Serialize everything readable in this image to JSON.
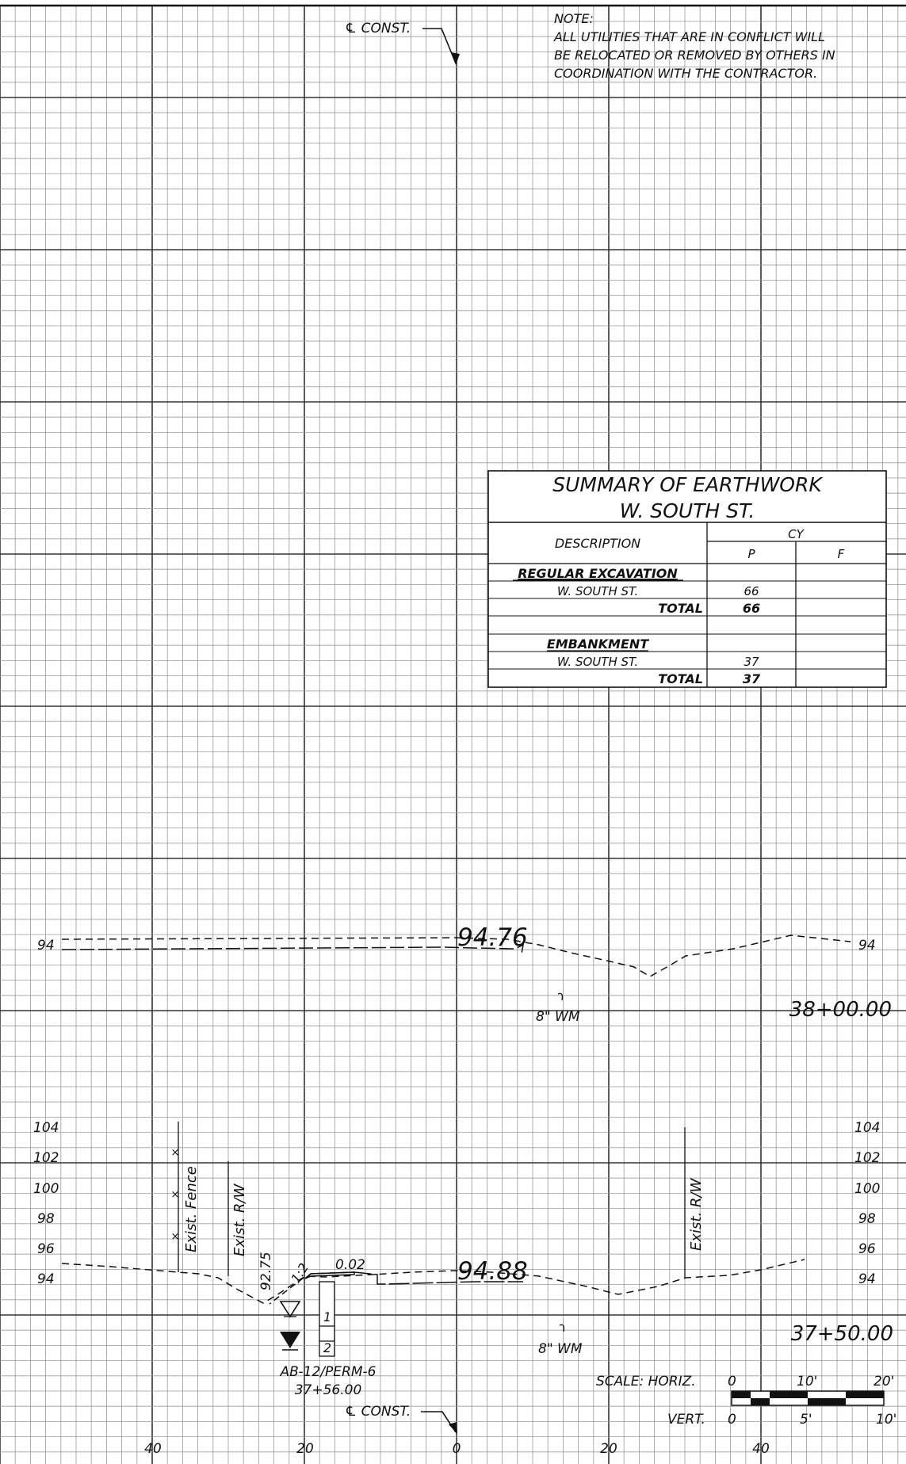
{
  "note": {
    "title": "NOTE:",
    "lines": [
      "ALL UTILITIES THAT ARE IN CONFLICT WILL",
      "BE RELOCATED OR REMOVED BY OTHERS IN",
      "COORDINATION WITH THE CONTRACTOR."
    ]
  },
  "centerline_label": "℄ CONST.",
  "summary_table": {
    "title": "SUMMARY OF EARTHWORK",
    "subtitle": "W. SOUTH ST.",
    "header_description": "DESCRIPTION",
    "header_unit": "CY",
    "header_p": "P",
    "header_f": "F",
    "sections": [
      {
        "heading": "REGULAR EXCAVATION",
        "item": "W. SOUTH ST.",
        "item_p": "66",
        "total_label": "TOTAL",
        "total_p": "66"
      },
      {
        "heading": "EMBANKMENT",
        "item": "W. SOUTH ST.",
        "item_p": "37",
        "total_label": "TOTAL",
        "total_p": "37"
      }
    ]
  },
  "section_38": {
    "station": "38+00.00",
    "elevation": "94.76",
    "elev_left": "94",
    "elev_right": "94",
    "utility": "8\" WM"
  },
  "section_37": {
    "station": "37+50.00",
    "elevation": "94.88",
    "elev_labels_left": [
      "104",
      "102",
      "100",
      "98",
      "96",
      "94"
    ],
    "elev_labels_right": [
      "104",
      "102",
      "100",
      "98",
      "96",
      "94"
    ],
    "fence_label": "Exist. Fence",
    "rw_left_label": "Exist. R/W",
    "rw_right_label": "Exist. R/W",
    "ditch_elev": "92.75",
    "slope": "1:2",
    "cross_slope": "0.02",
    "utility": "8\" WM",
    "boring_layers": [
      "1",
      "2"
    ],
    "boring_id": "AB-12/PERM-6",
    "boring_station": "37+56.00"
  },
  "scale": {
    "horiz_label": "SCALE: HORIZ.",
    "vert_label": "VERT.",
    "horiz_ticks": [
      "0",
      "10'",
      "20'"
    ],
    "vert_ticks": [
      "0",
      "5'",
      "10'"
    ]
  },
  "offset_labels": [
    "40",
    "20",
    "0",
    "20",
    "40"
  ]
}
